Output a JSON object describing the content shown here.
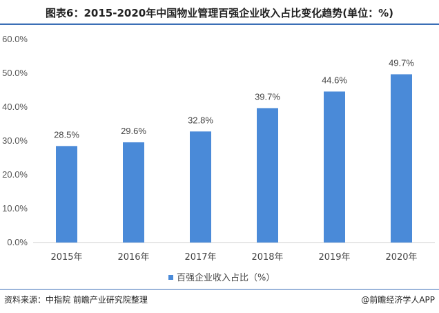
{
  "title": "图表6：2015-2020年中国物业管理百强企业收入占比变化趋势(单位：%)",
  "source": "资料来源：中指院 前瞻产业研究院整理",
  "brand": "@前瞻经济学人APP",
  "colors": {
    "bar": "#4a8ad8",
    "rule": "#3b6fb6"
  },
  "chart_data": {
    "type": "bar",
    "categories": [
      "2015年",
      "2016年",
      "2017年",
      "2018年",
      "2019年",
      "2020年"
    ],
    "series": [
      {
        "name": "百强企业收入占比（%）",
        "values": [
          28.5,
          29.6,
          32.8,
          39.7,
          44.6,
          49.7
        ]
      }
    ],
    "data_labels": [
      "28.5%",
      "29.6%",
      "32.8%",
      "39.7%",
      "44.6%",
      "49.7%"
    ],
    "yticks": [
      "0.0%",
      "10.0%",
      "20.0%",
      "30.0%",
      "40.0%",
      "50.0%",
      "60.0%"
    ],
    "ylim": [
      0,
      60
    ],
    "legend_position": "bottom",
    "grid": false
  }
}
